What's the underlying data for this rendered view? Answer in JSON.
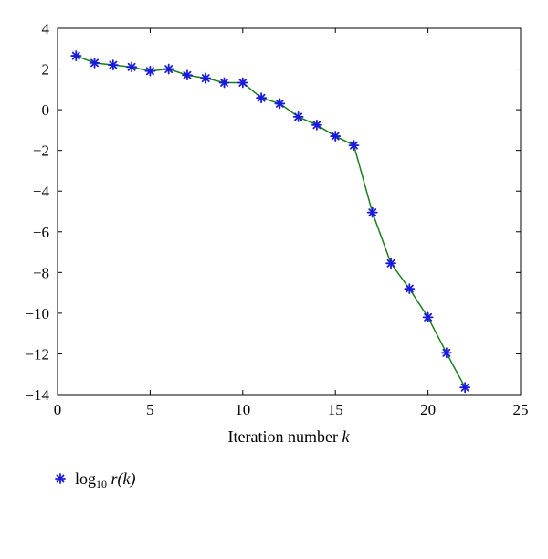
{
  "chart_data": {
    "type": "line",
    "title": "",
    "xlabel": "Iteration number k",
    "xlabel_parts": {
      "text": "Iteration number ",
      "var": "k"
    },
    "ylabel": "",
    "xlim": [
      0,
      25
    ],
    "ylim": [
      -14,
      4
    ],
    "xticks": [
      0,
      5,
      10,
      15,
      20,
      25
    ],
    "yticks": [
      4,
      2,
      0,
      -2,
      -4,
      -6,
      -8,
      -10,
      -12,
      -14
    ],
    "xtick_labels": [
      "0",
      "5",
      "10",
      "15",
      "20",
      "25"
    ],
    "ytick_labels": [
      "4",
      "2",
      "0",
      "−2",
      "−4",
      "−6",
      "−8",
      "−10",
      "−12",
      "−14"
    ],
    "grid": false,
    "legend_position": "bottom-left",
    "series": [
      {
        "name": "log10 r(k)",
        "marker": "asterisk",
        "marker_color": "#1a1adc",
        "line_color": "#1a7f1a",
        "x": [
          1,
          2,
          3,
          4,
          5,
          6,
          7,
          8,
          9,
          10,
          11,
          12,
          13,
          14,
          15,
          16,
          17,
          18,
          19,
          20,
          21,
          22
        ],
        "y": [
          2.65,
          2.3,
          2.2,
          2.1,
          1.9,
          2.0,
          1.7,
          1.55,
          1.33,
          1.33,
          0.58,
          0.3,
          -0.35,
          -0.75,
          -1.3,
          -1.75,
          -5.05,
          -7.55,
          -8.8,
          -10.2,
          -11.95,
          -13.65
        ]
      }
    ],
    "legend": {
      "label_main": "log",
      "label_sub": "10",
      "label_rest": " r(k)"
    }
  }
}
